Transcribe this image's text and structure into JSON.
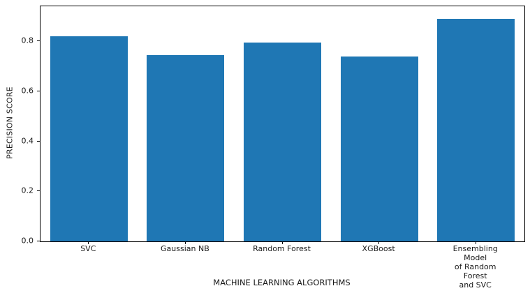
{
  "chart_data": {
    "type": "bar",
    "categories": [
      "SVC",
      "Gaussian NB",
      "Random Forest",
      "XGBoost",
      "Ensembling Model\nof Random Forest\nand SVC"
    ],
    "values": [
      0.82,
      0.745,
      0.795,
      0.74,
      0.89
    ],
    "title": "",
    "xlabel": "MACHINE LEARNING ALGORITHMS",
    "ylabel": "PRECISION SCORE",
    "ylim": [
      0,
      0.94
    ],
    "yticks": [
      0.0,
      0.2,
      0.4,
      0.6,
      0.8
    ],
    "bar_color": "#1f77b4",
    "grid": false,
    "legend_position": "none",
    "axis_color": "#000000",
    "background_color": "#ffffff"
  }
}
